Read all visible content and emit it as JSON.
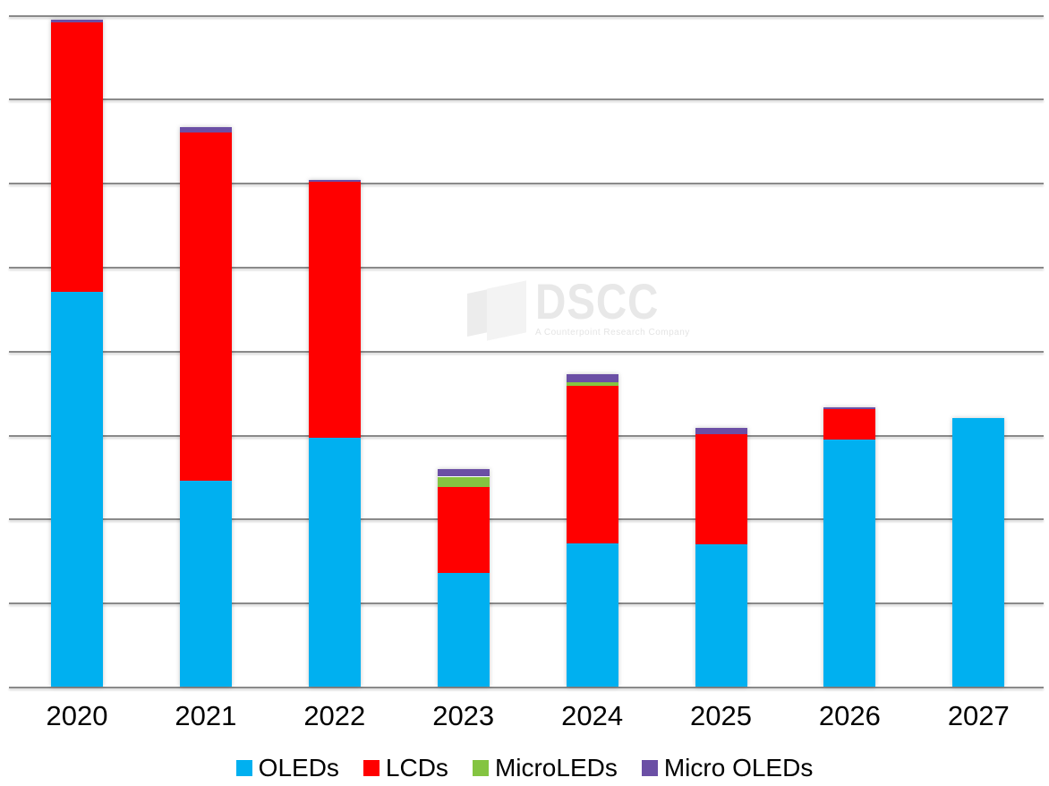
{
  "watermark": {
    "brand": "DSCC",
    "tagline": "A Counterpoint Research Company"
  },
  "chart_data": {
    "type": "bar",
    "stacked": true,
    "title": "",
    "xlabel": "",
    "ylabel": "",
    "categories": [
      "2020",
      "2021",
      "2022",
      "2023",
      "2024",
      "2025",
      "2026",
      "2027"
    ],
    "series": [
      {
        "name": "OLEDs",
        "color": "#00B0F0",
        "values": [
          4.7,
          2.45,
          2.96,
          1.35,
          1.71,
          1.69,
          2.94,
          3.2
        ]
      },
      {
        "name": "LCDs",
        "color": "#FF0000",
        "values": [
          3.21,
          4.15,
          3.05,
          1.03,
          1.87,
          1.32,
          0.37,
          0
        ]
      },
      {
        "name": "MicroLEDs",
        "color": "#84C441",
        "values": [
          0,
          0,
          0,
          0.12,
          0.04,
          0,
          0,
          0
        ]
      },
      {
        "name": "Micro OLEDs",
        "color": "#6B4FA5",
        "values": [
          0.03,
          0.06,
          0.02,
          0.09,
          0.1,
          0.07,
          0.02,
          0
        ]
      }
    ],
    "ylim": [
      0,
      8
    ],
    "y_axis_labels_visible": false,
    "gridlines": "horizontal, 9 unlabeled lines (8 equal intervals)",
    "legend_position": "bottom",
    "note": "Y axis is cropped/unlabeled in the screenshot; values are expressed in gridline units (1 unit = one gridline interval)"
  },
  "legend": {
    "items": [
      {
        "label": "OLEDs",
        "color": "#00B0F0"
      },
      {
        "label": "LCDs",
        "color": "#FF0000"
      },
      {
        "label": "MicroLEDs",
        "color": "#84C441"
      },
      {
        "label": "Micro OLEDs",
        "color": "#6B4FA5"
      }
    ]
  },
  "colors": {
    "background": "#FFFFFF",
    "gridline": "#8A8A8A",
    "axis_text": "#000000",
    "watermark_text": "#E8E8E8"
  }
}
